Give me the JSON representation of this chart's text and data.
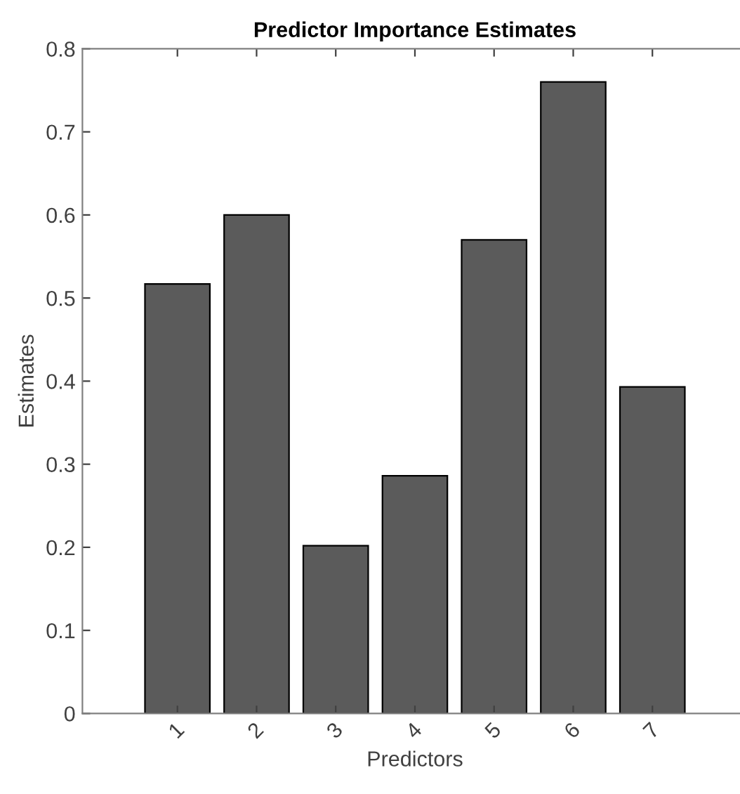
{
  "chart_data": {
    "type": "bar",
    "title": "Predictor Importance Estimates",
    "xlabel": "Predictors",
    "ylabel": "Estimates",
    "categories": [
      "1",
      "2",
      "3",
      "4",
      "5",
      "6",
      "7"
    ],
    "values": [
      0.517,
      0.6,
      0.202,
      0.286,
      0.57,
      0.76,
      0.393
    ],
    "color": "#5b5b5b",
    "ylim": [
      0,
      0.8
    ],
    "yticks": [
      0,
      0.1,
      0.2,
      0.3,
      0.4,
      0.5,
      0.6,
      0.7,
      0.8
    ],
    "grid": false
  }
}
